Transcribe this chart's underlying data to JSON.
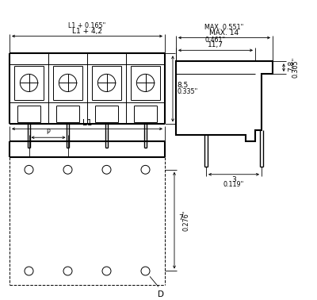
{
  "bg_color": "#ffffff",
  "line_color": "#000000",
  "dim_labels": {
    "max14": "MAX. 14",
    "max0551": "MAX. 0.551\"",
    "l1_42": "L1 + 4,2",
    "l1_0165": "L1 + 0.165\"",
    "dim_117": "11,7",
    "dim_0461": "0.461\"",
    "dim_85": "8,5",
    "dim_0335": "0.335\"",
    "dim_78": "7,8",
    "dim_0305": "0.305\"",
    "dim_3": "3",
    "dim_0119": "0.119\"",
    "dim_l1": "L1",
    "dim_p": "P",
    "dim_7": "7",
    "dim_0276": "0.276\"",
    "dim_d": "D"
  }
}
